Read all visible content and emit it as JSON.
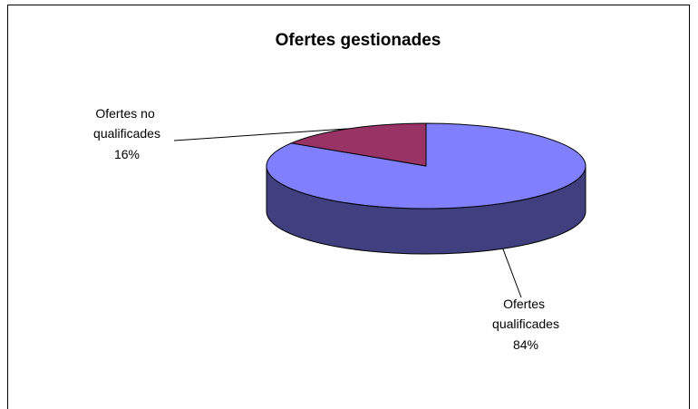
{
  "chart_data": {
    "type": "pie",
    "title": "Ofertes gestionades",
    "categories": [
      "Ofertes qualificades",
      "Ofertes no qualificades"
    ],
    "values": [
      84,
      16
    ],
    "value_labels": [
      "84%",
      "16%"
    ],
    "colors": [
      "#8080ff",
      "#993366"
    ],
    "side_colors": [
      "#404080",
      "#4d1a33"
    ]
  }
}
